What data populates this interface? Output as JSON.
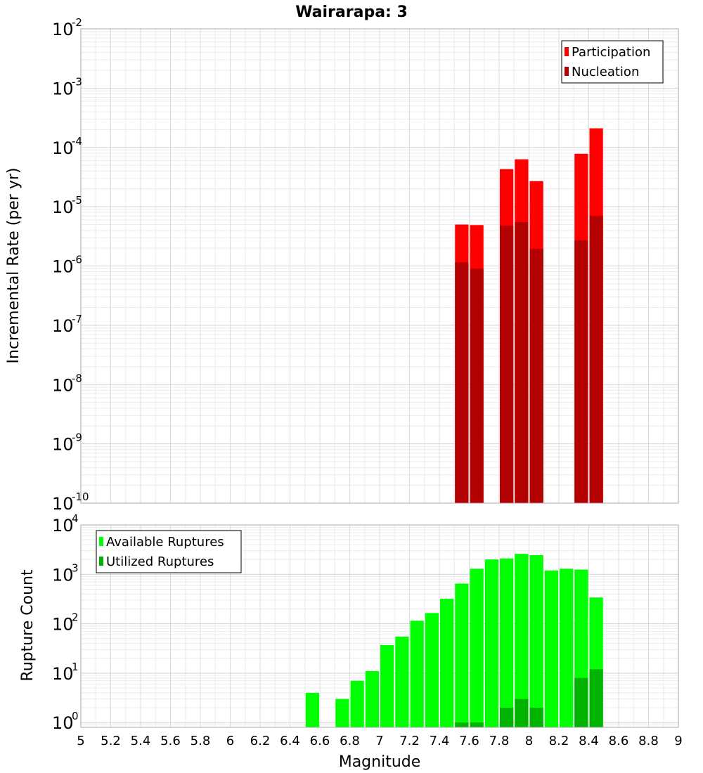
{
  "chart_data": {
    "type": "bar",
    "title": "Wairarapa: 3",
    "xlabel": "Magnitude",
    "xlim": [
      5,
      9
    ],
    "x_ticks": [
      "5",
      "5.2",
      "5.4",
      "5.6",
      "5.8",
      "6",
      "6.2",
      "6.4",
      "6.6",
      "6.8",
      "7",
      "7.2",
      "7.4",
      "7.6",
      "7.8",
      "8",
      "8.2",
      "8.4",
      "8.6",
      "8.8",
      "9"
    ],
    "bin_width": 0.1,
    "grid": true,
    "panels": [
      {
        "id": "rate",
        "ylabel": "Incremental Rate (per yr)",
        "yscale": "log",
        "ylim": [
          1e-10,
          0.01
        ],
        "y_tick_exponents": [
          "-10",
          "-9",
          "-8",
          "-7",
          "-6",
          "-5",
          "-4",
          "-3",
          "-2"
        ],
        "legend_position": "top-right",
        "series": [
          {
            "name": "Participation",
            "color": "#ff0000",
            "x": [
              7.55,
              7.65,
              7.85,
              7.95,
              8.05,
              8.35,
              8.45
            ],
            "values": [
              5e-06,
              4.9e-06,
              4.3e-05,
              6.3e-05,
              2.7e-05,
              7.8e-05,
              0.00021
            ]
          },
          {
            "name": "Nucleation",
            "color": "#b30000",
            "x": [
              7.55,
              7.65,
              7.85,
              7.95,
              8.05,
              8.35,
              8.45
            ],
            "values": [
              1.15e-06,
              9e-07,
              4.8e-06,
              5.5e-06,
              1.95e-06,
              2.7e-06,
              7e-06
            ]
          }
        ]
      },
      {
        "id": "count",
        "ylabel": "Rupture Count",
        "yscale": "log",
        "ylim": [
          0.8,
          10000
        ],
        "y_tick_exponents": [
          "0",
          "1",
          "2",
          "3",
          "4"
        ],
        "legend_position": "top-left",
        "series": [
          {
            "name": "Available Ruptures",
            "color": "#00ff00",
            "x": [
              6.55,
              6.75,
              6.85,
              6.95,
              7.05,
              7.15,
              7.25,
              7.35,
              7.45,
              7.55,
              7.65,
              7.75,
              7.85,
              7.95,
              8.05,
              8.15,
              8.25,
              8.35,
              8.45
            ],
            "values": [
              4,
              3,
              7,
              11,
              37,
              55,
              115,
              165,
              320,
              650,
              1300,
              2000,
              2100,
              2600,
              2450,
              1200,
              1300,
              1250,
              340
            ]
          },
          {
            "name": "Utilized Ruptures",
            "color": "#00b300",
            "x": [
              7.55,
              7.65,
              7.85,
              7.95,
              8.05,
              8.35,
              8.45
            ],
            "values": [
              1,
              1,
              2,
              3,
              2,
              8,
              12
            ]
          }
        ]
      }
    ]
  }
}
